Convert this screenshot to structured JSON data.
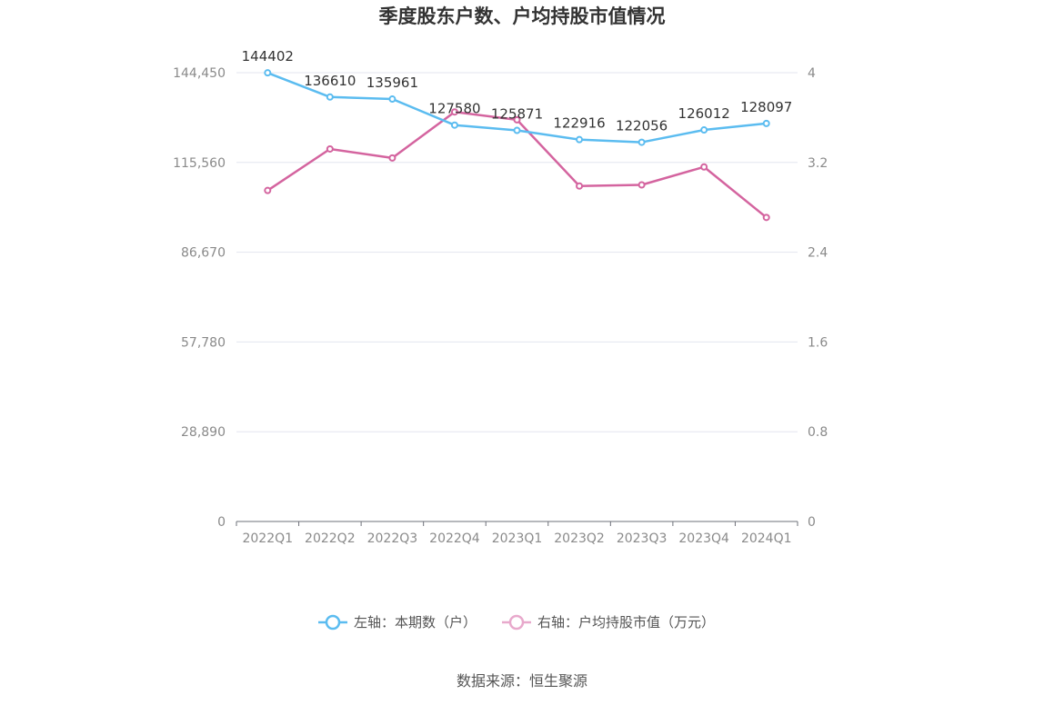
{
  "chart_data": {
    "type": "line",
    "title": "季度股东户数、户均持股市值情况",
    "categories": [
      "2022Q1",
      "2022Q2",
      "2022Q3",
      "2022Q4",
      "2023Q1",
      "2023Q2",
      "2023Q3",
      "2023Q4",
      "2024Q1"
    ],
    "left_axis": {
      "ticks": [
        "0",
        "28,890",
        "57,780",
        "86,670",
        "115,560",
        "144,450"
      ],
      "ylim": [
        0,
        144450
      ]
    },
    "right_axis": {
      "ticks": [
        "0",
        "0.8",
        "1.6",
        "2.4",
        "3.2",
        "4"
      ],
      "ylim": [
        0,
        4
      ]
    },
    "grid": true,
    "legend_position": "bottom",
    "series": [
      {
        "name": "左轴：本期数（户）",
        "axis": "left",
        "color": "#5bbcf0",
        "values": [
          144402,
          136610,
          135961,
          127580,
          125871,
          122916,
          122056,
          126012,
          128097
        ],
        "labels": [
          "144402",
          "136610",
          "135961",
          "127580",
          "125871",
          "122916",
          "122056",
          "126012",
          "128097"
        ]
      },
      {
        "name": "右轴：户均持股市值（万元）",
        "axis": "right",
        "color": "#d4649f",
        "legend_color": "#e8a9cc",
        "values": [
          2.95,
          3.32,
          3.24,
          3.65,
          3.58,
          2.99,
          3.0,
          3.16,
          2.71
        ]
      }
    ]
  },
  "source": "数据来源：恒生聚源"
}
